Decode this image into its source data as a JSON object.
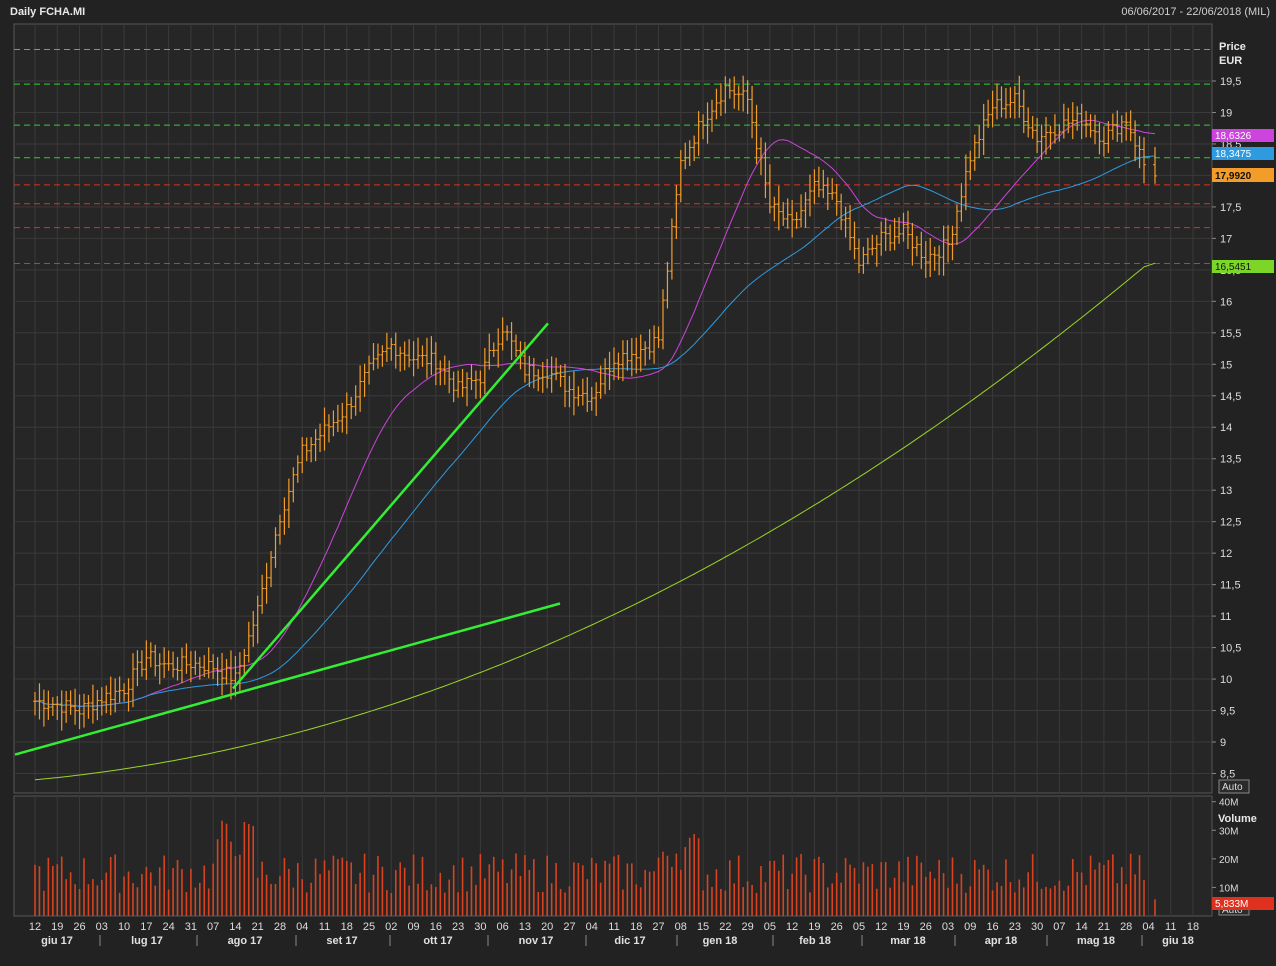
{
  "header": {
    "title": "Daily FCHA.MI",
    "range": "06/06/2017 - 22/06/2018 (MIL)"
  },
  "price_panel": {
    "label_line1": "Price",
    "label_line2": "EUR",
    "auto_label": "Auto"
  },
  "volume_panel": {
    "label": "Volume",
    "auto_label": "Auto",
    "ticks": [
      "40M",
      "30M",
      "20M",
      "10M"
    ],
    "last_value_label": "5,833M"
  },
  "badges": {
    "sma_short": "18,6326",
    "sma_mid": "18,3475",
    "last_price": "17,9920",
    "sma_long": "16,5451"
  },
  "colors": {
    "background": "#222222",
    "grid": "#3a3a3a",
    "candles": "#f39c2a",
    "volume": "#d8431f",
    "sma_short": "#cc44dd",
    "sma_mid": "#2e9be0",
    "sma_long": "#9ad628",
    "trendline": "#33ee33",
    "resistance": "#2fcf2f",
    "support": "#e0301e"
  },
  "chart_data": {
    "type": "candlestick",
    "title": "Daily FCHA.MI",
    "ylabel": "Price EUR",
    "y_ticks": [
      8.5,
      9,
      9.5,
      10,
      10.5,
      11,
      11.5,
      12,
      12.5,
      13,
      13.5,
      14,
      14.5,
      15,
      15.5,
      16,
      16.5,
      17,
      17.5,
      18,
      18.5,
      19,
      19.5
    ],
    "y_tick_labels": [
      "8,5",
      "9",
      "9,5",
      "10",
      "10,5",
      "11",
      "11,5",
      "12",
      "12,5",
      "13",
      "13,5",
      "14",
      "14,5",
      "15",
      "15,5",
      "16",
      "16,5",
      "17",
      "17,5",
      "18",
      "18,5",
      "19",
      "19,5"
    ],
    "ylim": [
      8.3,
      20.3
    ],
    "x_day_ticks": [
      "12",
      "19",
      "26",
      "03",
      "10",
      "17",
      "24",
      "31",
      "07",
      "14",
      "21",
      "28",
      "04",
      "11",
      "18",
      "25",
      "02",
      "09",
      "16",
      "23",
      "30",
      "06",
      "13",
      "20",
      "27",
      "04",
      "11",
      "18",
      "27",
      "08",
      "15",
      "22",
      "29",
      "05",
      "12",
      "19",
      "26",
      "05",
      "12",
      "19",
      "26",
      "03",
      "09",
      "16",
      "23",
      "30",
      "07",
      "14",
      "21",
      "28",
      "04",
      "11",
      "18"
    ],
    "x_month_ticks": [
      "giu 17",
      "lug 17",
      "ago 17",
      "set 17",
      "ott 17",
      "nov 17",
      "dic 17",
      "gen 18",
      "feb 18",
      "mar 18",
      "apr 18",
      "mag 18",
      "giu 18"
    ],
    "price_path": [
      [
        "12",
        9.65
      ],
      [
        "19",
        9.6
      ],
      [
        "26",
        9.5
      ],
      [
        "03",
        9.7
      ],
      [
        "10",
        9.85
      ],
      [
        "17",
        10.35
      ],
      [
        "24",
        10.2
      ],
      [
        "31",
        10.25
      ],
      [
        "07",
        10.2
      ],
      [
        "14",
        10.0
      ],
      [
        "21",
        11.1
      ],
      [
        "28",
        12.6
      ],
      [
        "04",
        13.6
      ],
      [
        "11",
        13.95
      ],
      [
        "18",
        14.3
      ],
      [
        "25",
        14.9
      ],
      [
        "02",
        15.3
      ],
      [
        "09",
        15.1
      ],
      [
        "16",
        15.05
      ],
      [
        "23",
        14.6
      ],
      [
        "30",
        14.8
      ],
      [
        "06",
        15.6
      ],
      [
        "13",
        14.9
      ],
      [
        "20",
        14.9
      ],
      [
        "27",
        14.6
      ],
      [
        "04",
        14.5
      ],
      [
        "11",
        15.1
      ],
      [
        "18",
        15.2
      ],
      [
        "27",
        15.4
      ],
      [
        "08",
        18.2
      ],
      [
        "15",
        18.9
      ],
      [
        "22",
        19.4
      ],
      [
        "29",
        19.2
      ],
      [
        "05",
        17.5
      ],
      [
        "12",
        17.2
      ],
      [
        "19",
        17.8
      ],
      [
        "26",
        17.6
      ],
      [
        "05",
        16.6
      ],
      [
        "12",
        17.0
      ],
      [
        "19",
        17.1
      ],
      [
        "26",
        16.7
      ],
      [
        "03",
        16.9
      ],
      [
        "09",
        18.3
      ],
      [
        "16",
        19.1
      ],
      [
        "23",
        19.2
      ],
      [
        "30",
        18.6
      ],
      [
        "07",
        18.8
      ],
      [
        "14",
        18.9
      ],
      [
        "21",
        18.6
      ],
      [
        "28",
        18.9
      ],
      [
        "04",
        17.99
      ]
    ],
    "series": [
      {
        "key": "sma_short",
        "last": 18.6326
      },
      {
        "key": "sma_mid",
        "last": 18.3475
      },
      {
        "key": "sma_long",
        "last": 16.5451
      }
    ],
    "last_price": 17.992,
    "resistance_levels": [
      20.0,
      19.45,
      18.8,
      18.28
    ],
    "support_levels": [
      17.85,
      17.55,
      17.17,
      16.6
    ],
    "volume_ticks": [
      40,
      30,
      20,
      10
    ],
    "volume_unit": "M",
    "volume_max": 42,
    "volume_last": 5.833
  }
}
